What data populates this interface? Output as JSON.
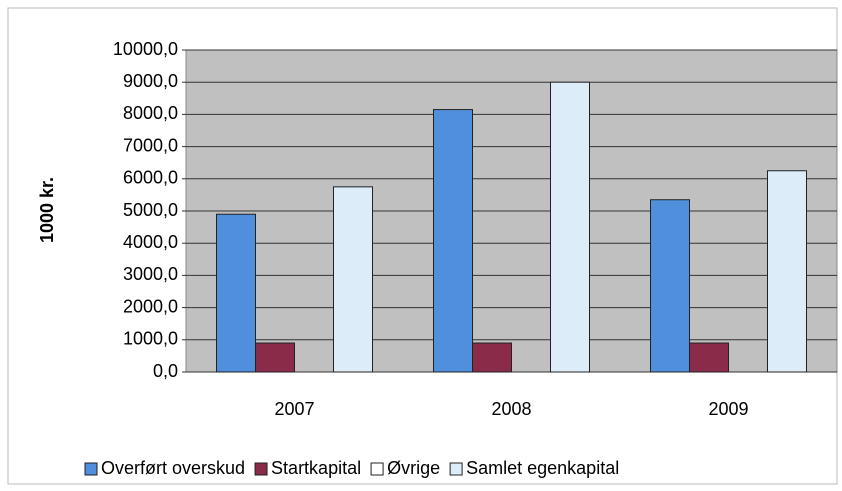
{
  "chart_data": {
    "type": "bar",
    "y_label": "1000 kr.",
    "categories": [
      "2007",
      "2008",
      "2009"
    ],
    "series": [
      {
        "name": "Overført overskud",
        "color": "#4f8fdc",
        "values": [
          4900,
          8150,
          5350
        ]
      },
      {
        "name": "Startkapital",
        "color": "#8b2b4a",
        "values": [
          900,
          900,
          900
        ]
      },
      {
        "name": "Øvrige",
        "color": "#ffffff",
        "values": [
          0,
          0,
          0
        ]
      },
      {
        "name": "Samlet egenkapital",
        "color": "#dcecf8",
        "values": [
          5750,
          9000,
          6250
        ]
      }
    ],
    "ylim": [
      0,
      10000
    ],
    "yticks": [
      {
        "value": 0,
        "label": "0,0"
      },
      {
        "value": 1000,
        "label": "1000,0"
      },
      {
        "value": 2000,
        "label": "2000,0"
      },
      {
        "value": 3000,
        "label": "3000,0"
      },
      {
        "value": 4000,
        "label": "4000,0"
      },
      {
        "value": 5000,
        "label": "5000,0"
      },
      {
        "value": 6000,
        "label": "6000,0"
      },
      {
        "value": 7000,
        "label": "7000,0"
      },
      {
        "value": 8000,
        "label": "8000,0"
      },
      {
        "value": 9000,
        "label": "9000,0"
      },
      {
        "value": 10000,
        "label": "10000,0"
      }
    ],
    "grid": true
  }
}
